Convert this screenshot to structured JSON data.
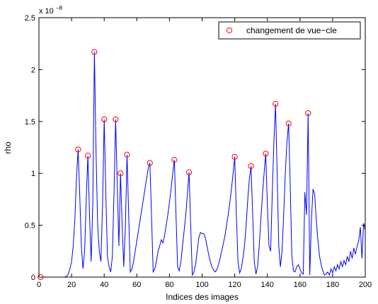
{
  "chart_data": {
    "type": "line",
    "xlabel": "Indices des images",
    "ylabel": "rho",
    "xlim": [
      0,
      200
    ],
    "ylim": [
      0,
      2.5e-08
    ],
    "y_exponent_label": "x 10",
    "y_exponent_power": "−8",
    "x_ticks": [
      0,
      20,
      40,
      60,
      80,
      100,
      120,
      140,
      160,
      180,
      200
    ],
    "x_tick_labels": [
      "0",
      "20",
      "40",
      "60",
      "80",
      "100",
      "120",
      "140",
      "160",
      "180",
      "200"
    ],
    "y_ticks": [
      0,
      5e-09,
      1e-08,
      1.5e-08,
      2e-08,
      2.5e-08
    ],
    "y_tick_labels": [
      "0",
      "0.5",
      "1",
      "1.5",
      "2",
      "2.5"
    ],
    "grid": false,
    "legend_position": "top-right",
    "line_color": "#0000ff",
    "marker_color": "#ff0000",
    "series": [
      {
        "points": [
          [
            1,
            0
          ],
          [
            2,
            0
          ],
          [
            3,
            0
          ],
          [
            4,
            0
          ],
          [
            5,
            0
          ],
          [
            6,
            0
          ],
          [
            7,
            0
          ],
          [
            8,
            0
          ],
          [
            9,
            0
          ],
          [
            10,
            0
          ],
          [
            11,
            0
          ],
          [
            12,
            0
          ],
          [
            13,
            0
          ],
          [
            14,
            0
          ],
          [
            15,
            0
          ],
          [
            16,
            2e-11
          ],
          [
            17,
            1e-10
          ],
          [
            18,
            3e-10
          ],
          [
            19,
            8e-10
          ],
          [
            20,
            1.5e-09
          ],
          [
            21,
            3e-09
          ],
          [
            22,
            5.5e-09
          ],
          [
            23,
            9.5e-09
          ],
          [
            24,
            1.23e-08
          ],
          [
            25,
            8e-09
          ],
          [
            26,
            3e-09
          ],
          [
            27,
            8e-10
          ],
          [
            28,
            2.5e-09
          ],
          [
            29,
            7.5e-09
          ],
          [
            30,
            1.17e-08
          ],
          [
            31,
            6e-09
          ],
          [
            32,
            1.5e-09
          ],
          [
            33,
            7e-09
          ],
          [
            34,
            2.17e-08
          ],
          [
            35,
            1.2e-08
          ],
          [
            36,
            5e-09
          ],
          [
            37,
            2.5e-09
          ],
          [
            38,
            1.5e-09
          ],
          [
            39,
            7e-09
          ],
          [
            40,
            1.52e-08
          ],
          [
            41,
            8e-09
          ],
          [
            42,
            2e-09
          ],
          [
            43,
            1e-09
          ],
          [
            44,
            5e-10
          ],
          [
            45,
            2e-09
          ],
          [
            46,
            8e-09
          ],
          [
            47,
            1.52e-08
          ],
          [
            48,
            9e-09
          ],
          [
            49,
            3e-09
          ],
          [
            50,
            1e-08
          ],
          [
            51,
            5e-09
          ],
          [
            52,
            1e-09
          ],
          [
            53,
            5e-09
          ],
          [
            54,
            1.18e-08
          ],
          [
            55,
            6e-09
          ],
          [
            56,
            5e-10
          ],
          [
            57,
            8e-10
          ],
          [
            58,
            1.5e-09
          ],
          [
            59,
            2.5e-09
          ],
          [
            60,
            3.5e-09
          ],
          [
            61,
            4.5e-09
          ],
          [
            62,
            5.5e-09
          ],
          [
            63,
            6.5e-09
          ],
          [
            64,
            7.5e-09
          ],
          [
            65,
            8.5e-09
          ],
          [
            66,
            9.5e-09
          ],
          [
            67,
            1.05e-08
          ],
          [
            68,
            1.1e-08
          ],
          [
            69,
            6e-09
          ],
          [
            70,
            5e-10
          ],
          [
            71,
            8e-10
          ],
          [
            72,
            1.5e-09
          ],
          [
            73,
            2.5e-09
          ],
          [
            74,
            3e-09
          ],
          [
            75,
            3.6e-09
          ],
          [
            76,
            3.3e-09
          ],
          [
            77,
            4e-09
          ],
          [
            78,
            5e-09
          ],
          [
            79,
            6e-09
          ],
          [
            80,
            7.2e-09
          ],
          [
            81,
            8.5e-09
          ],
          [
            82,
            1e-08
          ],
          [
            83,
            1.13e-08
          ],
          [
            84,
            6e-09
          ],
          [
            85,
            1e-09
          ],
          [
            86,
            6e-10
          ],
          [
            87,
            1.5e-09
          ],
          [
            88,
            3e-09
          ],
          [
            89,
            4.5e-09
          ],
          [
            90,
            6e-09
          ],
          [
            91,
            8e-09
          ],
          [
            92,
            1.01e-08
          ],
          [
            93,
            5e-09
          ],
          [
            94,
            2e-10
          ],
          [
            95,
            5e-10
          ],
          [
            96,
            1.2e-09
          ],
          [
            97,
            2.5e-09
          ],
          [
            98,
            3.8e-09
          ],
          [
            99,
            4.3e-09
          ],
          [
            100,
            4.2e-09
          ],
          [
            101,
            4.2e-09
          ],
          [
            102,
            3.8e-09
          ],
          [
            103,
            3e-09
          ],
          [
            104,
            2.2e-09
          ],
          [
            105,
            1.5e-09
          ],
          [
            106,
            1e-09
          ],
          [
            107,
            7e-10
          ],
          [
            108,
            5e-10
          ],
          [
            109,
            7e-10
          ],
          [
            110,
            1.2e-09
          ],
          [
            111,
            1.8e-09
          ],
          [
            112,
            2.5e-09
          ],
          [
            113,
            3.2e-09
          ],
          [
            114,
            4e-09
          ],
          [
            115,
            5e-09
          ],
          [
            116,
            6e-09
          ],
          [
            117,
            7.2e-09
          ],
          [
            118,
            8.5e-09
          ],
          [
            119,
            1e-08
          ],
          [
            120,
            1.16e-08
          ],
          [
            121,
            6e-09
          ],
          [
            122,
            1.5e-09
          ],
          [
            123,
            4e-10
          ],
          [
            124,
            8e-10
          ],
          [
            125,
            1.8e-09
          ],
          [
            126,
            3e-09
          ],
          [
            127,
            5e-09
          ],
          [
            128,
            7.5e-09
          ],
          [
            129,
            9.5e-09
          ],
          [
            130,
            1.07e-08
          ],
          [
            131,
            6e-09
          ],
          [
            132,
            1.5e-09
          ],
          [
            133,
            3e-10
          ],
          [
            134,
            1e-09
          ],
          [
            135,
            3e-09
          ],
          [
            136,
            5.5e-09
          ],
          [
            137,
            8e-09
          ],
          [
            138,
            1e-08
          ],
          [
            139,
            1.19e-08
          ],
          [
            140,
            7e-09
          ],
          [
            141,
            3e-09
          ],
          [
            142,
            2.5e-09
          ],
          [
            143,
            8e-09
          ],
          [
            144,
            1.3e-08
          ],
          [
            145,
            1.67e-08
          ],
          [
            146,
            1e-08
          ],
          [
            147,
            3e-09
          ],
          [
            148,
            1e-09
          ],
          [
            149,
            2.5e-09
          ],
          [
            150,
            6e-09
          ],
          [
            151,
            1e-08
          ],
          [
            152,
            1.3e-08
          ],
          [
            153,
            1.48e-08
          ],
          [
            154,
            9e-09
          ],
          [
            155,
            2e-09
          ],
          [
            156,
            6e-10
          ],
          [
            157,
            5e-10
          ],
          [
            158,
            1e-09
          ],
          [
            159,
            1.2e-09
          ],
          [
            160,
            8e-10
          ],
          [
            161,
            4e-10
          ],
          [
            162,
            3e-10
          ],
          [
            163,
            8.2e-09
          ],
          [
            164,
            6e-09
          ],
          [
            165,
            1.58e-08
          ],
          [
            166,
            2e-10
          ],
          [
            167,
            5.5e-09
          ],
          [
            168,
            8.5e-09
          ],
          [
            169,
            8e-09
          ],
          [
            170,
            5.5e-09
          ],
          [
            171,
            3.5e-09
          ],
          [
            172,
            2e-09
          ],
          [
            173,
            1.2e-09
          ],
          [
            174,
            6e-10
          ],
          [
            175,
            2e-10
          ],
          [
            176,
            3e-10
          ],
          [
            177,
            5e-10
          ],
          [
            178,
            2e-10
          ],
          [
            179,
            8e-10
          ],
          [
            180,
            4e-10
          ],
          [
            181,
            1e-09
          ],
          [
            182,
            6e-10
          ],
          [
            183,
            1.2e-09
          ],
          [
            184,
            8e-10
          ],
          [
            185,
            1.5e-09
          ],
          [
            186,
            1e-09
          ],
          [
            187,
            1.6e-09
          ],
          [
            188,
            1.2e-09
          ],
          [
            189,
            2e-09
          ],
          [
            190,
            1.5e-09
          ],
          [
            191,
            2.5e-09
          ],
          [
            192,
            1.8e-09
          ],
          [
            193,
            2.8e-09
          ],
          [
            194,
            2.2e-09
          ],
          [
            195,
            3e-09
          ],
          [
            196,
            3.5e-09
          ],
          [
            197,
            4.8e-09
          ],
          [
            198,
            1.8e-09
          ],
          [
            199,
            5.2e-09
          ],
          [
            200,
            4.5e-09
          ]
        ]
      },
      {
        "name": "changement de vue−cle",
        "type": "scatter",
        "marker": "circle",
        "points": [
          [
            1,
            0
          ],
          [
            24,
            1.23e-08
          ],
          [
            30,
            1.17e-08
          ],
          [
            34,
            2.17e-08
          ],
          [
            40,
            1.52e-08
          ],
          [
            47,
            1.52e-08
          ],
          [
            50,
            1e-08
          ],
          [
            54,
            1.18e-08
          ],
          [
            68,
            1.1e-08
          ],
          [
            83,
            1.13e-08
          ],
          [
            92,
            1.01e-08
          ],
          [
            120,
            1.16e-08
          ],
          [
            130,
            1.07e-08
          ],
          [
            139,
            1.19e-08
          ],
          [
            145,
            1.67e-08
          ],
          [
            153,
            1.48e-08
          ],
          [
            165,
            1.58e-08
          ]
        ]
      }
    ]
  }
}
